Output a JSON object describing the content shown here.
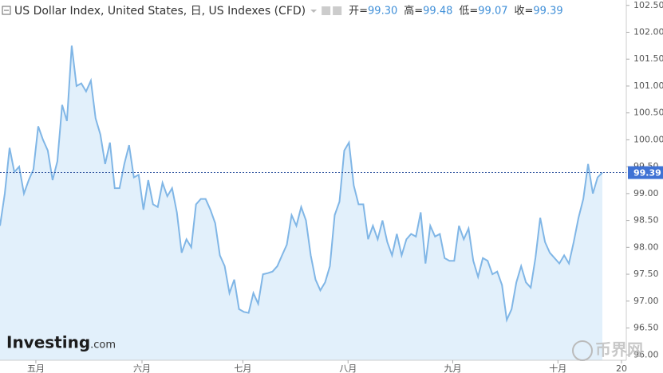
{
  "chart_data": {
    "type": "area",
    "title": "US Dollar Index, United States, 日, US Indexes (CFD)",
    "ohlc": {
      "labels": [
        "开=",
        "高=",
        "低=",
        "收="
      ],
      "values": [
        99.3,
        99.48,
        99.07,
        99.39
      ],
      "value_labels": [
        "99.30",
        "99.48",
        "99.07",
        "99.39"
      ]
    },
    "last_price": 99.39,
    "watermark": {
      "brand": "Investing",
      "suffix": ".com",
      "site": "币界网"
    },
    "line_color": "#80b6e6",
    "fill_color": "#e2f0fb",
    "price_box_color": "#3f72d4",
    "xlim": [
      0,
      131
    ],
    "xticks": [
      {
        "value": 7.5,
        "label": "五月"
      },
      {
        "value": 29.7,
        "label": "六月"
      },
      {
        "value": 50.8,
        "label": "七月"
      },
      {
        "value": 72.8,
        "label": "八月"
      },
      {
        "value": 94.7,
        "label": "九月"
      },
      {
        "value": 116.7,
        "label": "十月"
      },
      {
        "value": 130,
        "label": "20"
      }
    ],
    "ylim": [
      95.9,
      102.6
    ],
    "yticks": [
      {
        "value": 96,
        "label": "96.00"
      },
      {
        "value": 96.5,
        "label": "96.50"
      },
      {
        "value": 97,
        "label": "97.00"
      },
      {
        "value": 97.5,
        "label": "97.50"
      },
      {
        "value": 98,
        "label": "98.00"
      },
      {
        "value": 98.5,
        "label": "98.50"
      },
      {
        "value": 99,
        "label": "99.00"
      },
      {
        "value": 99.5,
        "label": "99.50"
      },
      {
        "value": 100,
        "label": "100.00"
      },
      {
        "value": 100.5,
        "label": "100.50"
      },
      {
        "value": 101,
        "label": "101.00"
      },
      {
        "value": 101.5,
        "label": "101.50"
      },
      {
        "value": 102,
        "label": "102.00"
      },
      {
        "value": 102.5,
        "label": "102.50"
      }
    ],
    "values": [
      98.4,
      99.0,
      99.85,
      99.4,
      99.5,
      99.0,
      99.25,
      99.45,
      100.25,
      100.0,
      99.8,
      99.25,
      99.6,
      100.65,
      100.35,
      101.75,
      101.0,
      101.05,
      100.9,
      101.1,
      100.4,
      100.1,
      99.55,
      99.95,
      99.1,
      99.1,
      99.55,
      99.9,
      99.3,
      99.35,
      98.7,
      99.25,
      98.8,
      98.75,
      99.2,
      98.95,
      99.1,
      98.65,
      97.9,
      98.15,
      98.0,
      98.8,
      98.9,
      98.9,
      98.7,
      98.45,
      97.85,
      97.65,
      97.15,
      97.4,
      96.85,
      96.8,
      96.78,
      97.15,
      96.95,
      97.5,
      97.52,
      97.55,
      97.65,
      97.85,
      98.05,
      98.6,
      98.4,
      98.75,
      98.5,
      97.85,
      97.4,
      97.2,
      97.35,
      97.65,
      98.6,
      98.85,
      99.8,
      99.95,
      99.15,
      98.8,
      98.8,
      98.15,
      98.4,
      98.15,
      98.5,
      98.1,
      97.85,
      98.25,
      97.85,
      98.15,
      98.25,
      98.2,
      98.65,
      97.7,
      98.4,
      98.2,
      98.25,
      97.8,
      97.75,
      97.75,
      98.4,
      98.15,
      98.35,
      97.75,
      97.45,
      97.8,
      97.75,
      97.5,
      97.55,
      97.3,
      96.65,
      96.85,
      97.35,
      97.65,
      97.35,
      97.25,
      97.8,
      98.55,
      98.1,
      97.9,
      97.8,
      97.7,
      97.85,
      97.7,
      98.1,
      98.55,
      98.9,
      99.55,
      99.0,
      99.3,
      99.39
    ]
  }
}
